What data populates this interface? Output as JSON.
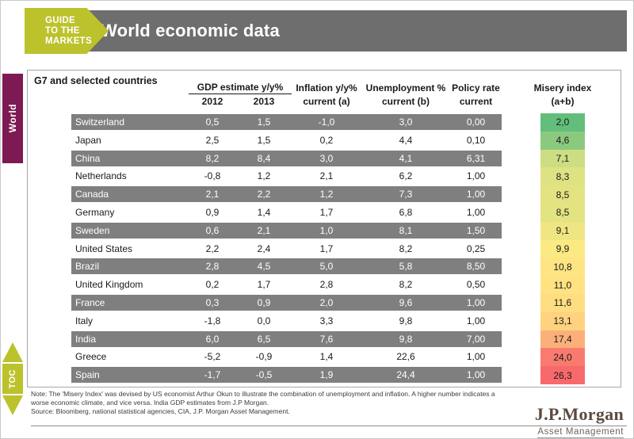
{
  "header": {
    "badge": {
      "lines": [
        "GUIDE",
        "TO THE",
        "MARKETS"
      ],
      "color": "#BCC22B"
    },
    "title": "World economic data",
    "bar_color": "#6E6E6E"
  },
  "side": {
    "section_tab": "World",
    "section_tab_color": "#7E1A53",
    "toc_label": "TOC"
  },
  "chart_data": {
    "type": "table",
    "title": "G7 and selected countries",
    "header_labels": {
      "gdp_group": "GDP estimate y/y%",
      "gdp_2012": "2012",
      "gdp_2013": "2013",
      "inflation_l1": "Inflation y/y%",
      "inflation_l2": "current (a)",
      "unemployment_l1": "Unemployment %",
      "unemployment_l2": "current (b)",
      "policy_l1": "Policy rate",
      "policy_l2": "current",
      "misery_l1": "Misery index",
      "misery_l2": "(a+b)"
    },
    "row_shaded_color": "#7F7F7F",
    "rows": [
      {
        "country": "Switzerland",
        "gdp_2012": "0,5",
        "gdp_2013": "1,5",
        "inflation": "-1,0",
        "unemployment": "3,0",
        "policy_rate": "0,00",
        "misery": "2,0",
        "misery_color": "#63BE7B",
        "shaded": true
      },
      {
        "country": "Japan",
        "gdp_2012": "2,5",
        "gdp_2013": "1,5",
        "inflation": "0,2",
        "unemployment": "4,4",
        "policy_rate": "0,10",
        "misery": "4,6",
        "misery_color": "#8BCA7E",
        "shaded": false
      },
      {
        "country": "China",
        "gdp_2012": "8,2",
        "gdp_2013": "8,4",
        "inflation": "3,0",
        "unemployment": "4,1",
        "policy_rate": "6,31",
        "misery": "7,1",
        "misery_color": "#CCDD82",
        "shaded": true
      },
      {
        "country": "Netherlands",
        "gdp_2012": "-0,8",
        "gdp_2013": "1,2",
        "inflation": "2,1",
        "unemployment": "6,2",
        "policy_rate": "1,00",
        "misery": "8,3",
        "misery_color": "#DFE282",
        "shaded": false
      },
      {
        "country": "Canada",
        "gdp_2012": "2,1",
        "gdp_2013": "2,2",
        "inflation": "1,2",
        "unemployment": "7,3",
        "policy_rate": "1,00",
        "misery": "8,5",
        "misery_color": "#E3E382",
        "shaded": true
      },
      {
        "country": "Germany",
        "gdp_2012": "0,9",
        "gdp_2013": "1,4",
        "inflation": "1,7",
        "unemployment": "6,8",
        "policy_rate": "1,00",
        "misery": "8,5",
        "misery_color": "#E3E382",
        "shaded": false
      },
      {
        "country": "Sweden",
        "gdp_2012": "0,6",
        "gdp_2013": "2,1",
        "inflation": "1,0",
        "unemployment": "8,1",
        "policy_rate": "1,50",
        "misery": "9,1",
        "misery_color": "#EFE683",
        "shaded": true
      },
      {
        "country": "United States",
        "gdp_2012": "2,2",
        "gdp_2013": "2,4",
        "inflation": "1,7",
        "unemployment": "8,2",
        "policy_rate": "0,25",
        "misery": "9,9",
        "misery_color": "#FBEA84",
        "shaded": false
      },
      {
        "country": "Brazil",
        "gdp_2012": "2,8",
        "gdp_2013": "4,5",
        "inflation": "5,0",
        "unemployment": "5,8",
        "policy_rate": "8,50",
        "misery": "10,8",
        "misery_color": "#FFE483",
        "shaded": true
      },
      {
        "country": "United Kingdom",
        "gdp_2012": "0,2",
        "gdp_2013": "1,7",
        "inflation": "2,8",
        "unemployment": "8,2",
        "policy_rate": "0,50",
        "misery": "11,0",
        "misery_color": "#FFE282",
        "shaded": false
      },
      {
        "country": "France",
        "gdp_2012": "0,3",
        "gdp_2013": "0,9",
        "inflation": "2,0",
        "unemployment": "9,6",
        "policy_rate": "1,00",
        "misery": "11,6",
        "misery_color": "#FFDD81",
        "shaded": true
      },
      {
        "country": "Italy",
        "gdp_2012": "-1,8",
        "gdp_2013": "0,0",
        "inflation": "3,3",
        "unemployment": "9,8",
        "policy_rate": "1,00",
        "misery": "13,1",
        "misery_color": "#FFD27F",
        "shaded": false
      },
      {
        "country": "India",
        "gdp_2012": "6,0",
        "gdp_2013": "6,5",
        "inflation": "7,6",
        "unemployment": "9,8",
        "policy_rate": "7,00",
        "misery": "17,4",
        "misery_color": "#FCB079",
        "shaded": true
      },
      {
        "country": "Greece",
        "gdp_2012": "-5,2",
        "gdp_2013": "-0,9",
        "inflation": "1,4",
        "unemployment": "22,6",
        "policy_rate": "1,00",
        "misery": "24,0",
        "misery_color": "#F97B6F",
        "shaded": false
      },
      {
        "country": "Spain",
        "gdp_2012": "-1,7",
        "gdp_2013": "-0,5",
        "inflation": "1,9",
        "unemployment": "24,4",
        "policy_rate": "1,00",
        "misery": "26,3",
        "misery_color": "#F8696B",
        "shaded": true
      }
    ]
  },
  "footnote": {
    "note": "Note: The 'Misery Index' was devised by US economist Arthur Okun to illustrate the combination of unemployment and inflation. A higher number indicates a worse economic climate, and vice versa. India GDP estimates from J.P Morgan.",
    "source": "Source: Bloomberg, national statistical agencies, CIA, J.P. Morgan Asset Management."
  },
  "logo": {
    "brand": "J.P.Morgan",
    "division": "Asset Management"
  }
}
